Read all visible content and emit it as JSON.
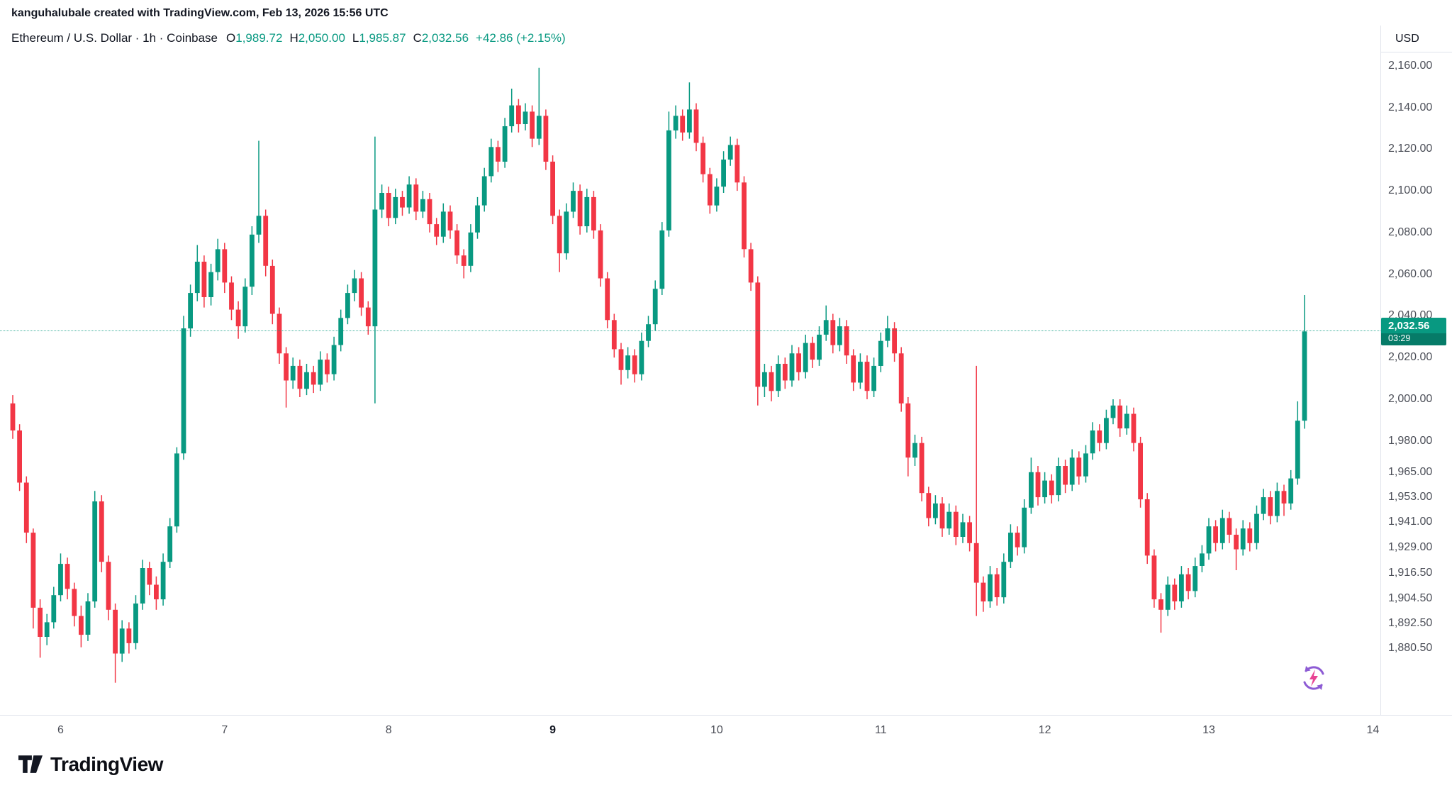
{
  "attribution": "kanguhalubale created with TradingView.com, Feb 13, 2026 15:56 UTC",
  "symbol_bar": {
    "title": "Ethereum / U.S. Dollar · 1h · Coinbase",
    "ohlc": {
      "o_label": "O",
      "o": "1,989.72",
      "h_label": "H",
      "h": "2,050.00",
      "l_label": "L",
      "l": "1,985.87",
      "c_label": "C",
      "c": "2,032.56",
      "change": "+42.86 (+2.15%)"
    }
  },
  "price_axis": {
    "unit": "USD",
    "last_price": "2,032.56",
    "countdown": "03:29",
    "labels": [
      {
        "v": 2160,
        "t": "2,160.00"
      },
      {
        "v": 2140,
        "t": "2,140.00"
      },
      {
        "v": 2120,
        "t": "2,120.00"
      },
      {
        "v": 2100,
        "t": "2,100.00"
      },
      {
        "v": 2080,
        "t": "2,080.00"
      },
      {
        "v": 2060,
        "t": "2,060.00"
      },
      {
        "v": 2040,
        "t": "2,040.00"
      },
      {
        "v": 2020,
        "t": "2,020.00"
      },
      {
        "v": 2000,
        "t": "2,000.00"
      },
      {
        "v": 1980,
        "t": "1,980.00"
      },
      {
        "v": 1965,
        "t": "1,965.00"
      },
      {
        "v": 1953,
        "t": "1,953.00"
      },
      {
        "v": 1941,
        "t": "1,941.00"
      },
      {
        "v": 1929,
        "t": "1,929.00"
      },
      {
        "v": 1916.5,
        "t": "1,916.50"
      },
      {
        "v": 1904.5,
        "t": "1,904.50"
      },
      {
        "v": 1892.5,
        "t": "1,892.50"
      },
      {
        "v": 1880.5,
        "t": "1,880.50"
      }
    ]
  },
  "time_axis": {
    "labels": [
      {
        "d": 6,
        "t": "6",
        "bold": false
      },
      {
        "d": 7,
        "t": "7",
        "bold": false
      },
      {
        "d": 8,
        "t": "8",
        "bold": false
      },
      {
        "d": 9,
        "t": "9",
        "bold": true
      },
      {
        "d": 10,
        "t": "10",
        "bold": false
      },
      {
        "d": 11,
        "t": "11",
        "bold": false
      },
      {
        "d": 12,
        "t": "12",
        "bold": false
      },
      {
        "d": 13,
        "t": "13",
        "bold": false
      },
      {
        "d": 14,
        "t": "14",
        "bold": false
      }
    ]
  },
  "logo": {
    "text": "TradingView"
  },
  "colors": {
    "up": "#089981",
    "down": "#f23645",
    "text": "#131722",
    "axis_text": "#4c4f58",
    "border": "#e0e3eb",
    "spark_purple": "#8d5bd4",
    "spark_pink": "#e84393"
  },
  "chart_data": {
    "type": "candlestick",
    "title": "Ethereum / U.S. Dollar",
    "interval": "1h",
    "exchange": "Coinbase",
    "ylabel": "USD",
    "grid": false,
    "visible_price_range": [
      1848,
      2160
    ],
    "x_axis_days": [
      6,
      7,
      8,
      9,
      10,
      11,
      12,
      13,
      14
    ],
    "bold_day": 9,
    "last": {
      "open": 1989.72,
      "high": 2050.0,
      "low": 1985.87,
      "close": 2032.56,
      "change_abs": 42.86,
      "change_pct": 2.15
    },
    "candles": [
      [
        1998,
        2002,
        1981,
        1985
      ],
      [
        1985,
        1988,
        1956,
        1960
      ],
      [
        1960,
        1963,
        1931,
        1936
      ],
      [
        1936,
        1938,
        1890,
        1900
      ],
      [
        1900,
        1904,
        1876,
        1886
      ],
      [
        1886,
        1897,
        1882,
        1893
      ],
      [
        1893,
        1910,
        1890,
        1906
      ],
      [
        1906,
        1926,
        1903,
        1921
      ],
      [
        1921,
        1924,
        1904,
        1909
      ],
      [
        1909,
        1912,
        1891,
        1896
      ],
      [
        1896,
        1901,
        1881,
        1887
      ],
      [
        1887,
        1907,
        1884,
        1903
      ],
      [
        1903,
        1956,
        1900,
        1951
      ],
      [
        1951,
        1954,
        1917,
        1922
      ],
      [
        1922,
        1925,
        1894,
        1899
      ],
      [
        1899,
        1902,
        1864,
        1878
      ],
      [
        1878,
        1894,
        1874,
        1890
      ],
      [
        1890,
        1893,
        1878,
        1883
      ],
      [
        1883,
        1906,
        1880,
        1902
      ],
      [
        1902,
        1923,
        1899,
        1919
      ],
      [
        1919,
        1922,
        1906,
        1911
      ],
      [
        1911,
        1915,
        1899,
        1904
      ],
      [
        1904,
        1926,
        1901,
        1922
      ],
      [
        1922,
        1943,
        1919,
        1939
      ],
      [
        1939,
        1977,
        1936,
        1974
      ],
      [
        1974,
        2040,
        1971,
        2034
      ],
      [
        2034,
        2055,
        2030,
        2051
      ],
      [
        2051,
        2074,
        2047,
        2066
      ],
      [
        2066,
        2069,
        2044,
        2049
      ],
      [
        2049,
        2065,
        2045,
        2061
      ],
      [
        2061,
        2077,
        2057,
        2072
      ],
      [
        2072,
        2075,
        2051,
        2056
      ],
      [
        2056,
        2059,
        2038,
        2043
      ],
      [
        2043,
        2047,
        2029,
        2035
      ],
      [
        2035,
        2058,
        2032,
        2054
      ],
      [
        2054,
        2083,
        2050,
        2079
      ],
      [
        2079,
        2124,
        2075,
        2088
      ],
      [
        2088,
        2091,
        2059,
        2064
      ],
      [
        2064,
        2067,
        2036,
        2041
      ],
      [
        2041,
        2044,
        2017,
        2022
      ],
      [
        2022,
        2025,
        1996,
        2009
      ],
      [
        2009,
        2020,
        2005,
        2016
      ],
      [
        2016,
        2019,
        2001,
        2005
      ],
      [
        2005,
        2017,
        2002,
        2013
      ],
      [
        2013,
        2016,
        2003,
        2007
      ],
      [
        2007,
        2023,
        2004,
        2019
      ],
      [
        2019,
        2022,
        2008,
        2012
      ],
      [
        2012,
        2030,
        2009,
        2026
      ],
      [
        2026,
        2043,
        2023,
        2039
      ],
      [
        2039,
        2055,
        2036,
        2051
      ],
      [
        2051,
        2062,
        2047,
        2058
      ],
      [
        2058,
        2061,
        2040,
        2044
      ],
      [
        2044,
        2047,
        2031,
        2035
      ],
      [
        2035,
        2126,
        1998,
        2091
      ],
      [
        2091,
        2103,
        2087,
        2099
      ],
      [
        2099,
        2102,
        2083,
        2087
      ],
      [
        2087,
        2101,
        2084,
        2097
      ],
      [
        2097,
        2100,
        2088,
        2092
      ],
      [
        2092,
        2107,
        2089,
        2103
      ],
      [
        2103,
        2106,
        2086,
        2090
      ],
      [
        2090,
        2100,
        2087,
        2096
      ],
      [
        2096,
        2099,
        2080,
        2084
      ],
      [
        2084,
        2087,
        2074,
        2078
      ],
      [
        2078,
        2094,
        2075,
        2090
      ],
      [
        2090,
        2093,
        2077,
        2081
      ],
      [
        2081,
        2084,
        2065,
        2069
      ],
      [
        2069,
        2072,
        2058,
        2064
      ],
      [
        2064,
        2084,
        2061,
        2080
      ],
      [
        2080,
        2097,
        2077,
        2093
      ],
      [
        2093,
        2111,
        2090,
        2107
      ],
      [
        2107,
        2125,
        2104,
        2121
      ],
      [
        2121,
        2124,
        2109,
        2114
      ],
      [
        2114,
        2135,
        2111,
        2131
      ],
      [
        2131,
        2149,
        2128,
        2141
      ],
      [
        2141,
        2144,
        2128,
        2132
      ],
      [
        2132,
        2142,
        2129,
        2138
      ],
      [
        2138,
        2141,
        2121,
        2125
      ],
      [
        2125,
        2159,
        2122,
        2136
      ],
      [
        2136,
        2139,
        2110,
        2114
      ],
      [
        2114,
        2117,
        2084,
        2088
      ],
      [
        2088,
        2091,
        2061,
        2070
      ],
      [
        2070,
        2094,
        2067,
        2090
      ],
      [
        2090,
        2104,
        2087,
        2100
      ],
      [
        2100,
        2103,
        2079,
        2083
      ],
      [
        2083,
        2101,
        2080,
        2097
      ],
      [
        2097,
        2100,
        2077,
        2081
      ],
      [
        2081,
        2084,
        2054,
        2058
      ],
      [
        2058,
        2061,
        2034,
        2038
      ],
      [
        2038,
        2041,
        2020,
        2024
      ],
      [
        2024,
        2027,
        2007,
        2014
      ],
      [
        2014,
        2025,
        2010,
        2021
      ],
      [
        2021,
        2024,
        2008,
        2012
      ],
      [
        2012,
        2032,
        2009,
        2028
      ],
      [
        2028,
        2040,
        2025,
        2036
      ],
      [
        2036,
        2057,
        2033,
        2053
      ],
      [
        2053,
        2085,
        2050,
        2081
      ],
      [
        2081,
        2138,
        2078,
        2129
      ],
      [
        2129,
        2141,
        2125,
        2136
      ],
      [
        2136,
        2139,
        2124,
        2128
      ],
      [
        2128,
        2152,
        2125,
        2139
      ],
      [
        2139,
        2142,
        2119,
        2123
      ],
      [
        2123,
        2126,
        2104,
        2108
      ],
      [
        2108,
        2111,
        2089,
        2093
      ],
      [
        2093,
        2106,
        2090,
        2102
      ],
      [
        2102,
        2119,
        2099,
        2115
      ],
      [
        2115,
        2126,
        2112,
        2122
      ],
      [
        2122,
        2125,
        2100,
        2104
      ],
      [
        2104,
        2107,
        2068,
        2072
      ],
      [
        2072,
        2075,
        2052,
        2056
      ],
      [
        2056,
        2059,
        1997,
        2006
      ],
      [
        2006,
        2017,
        2001,
        2013
      ],
      [
        2013,
        2016,
        1999,
        2004
      ],
      [
        2004,
        2021,
        2001,
        2017
      ],
      [
        2017,
        2020,
        2005,
        2009
      ],
      [
        2009,
        2026,
        2006,
        2022
      ],
      [
        2022,
        2025,
        2009,
        2013
      ],
      [
        2013,
        2031,
        2010,
        2027
      ],
      [
        2027,
        2030,
        2015,
        2019
      ],
      [
        2019,
        2035,
        2016,
        2031
      ],
      [
        2031,
        2045,
        2028,
        2038
      ],
      [
        2038,
        2041,
        2022,
        2026
      ],
      [
        2026,
        2039,
        2023,
        2035
      ],
      [
        2035,
        2038,
        2017,
        2021
      ],
      [
        2021,
        2024,
        2004,
        2008
      ],
      [
        2008,
        2022,
        2005,
        2018
      ],
      [
        2018,
        2021,
        2000,
        2004
      ],
      [
        2004,
        2020,
        2001,
        2016
      ],
      [
        2016,
        2032,
        2013,
        2028
      ],
      [
        2028,
        2040,
        2025,
        2034
      ],
      [
        2034,
        2037,
        2018,
        2022
      ],
      [
        2022,
        2025,
        1994,
        1998
      ],
      [
        1998,
        2001,
        1963,
        1972
      ],
      [
        1972,
        1983,
        1968,
        1979
      ],
      [
        1979,
        1982,
        1951,
        1955
      ],
      [
        1955,
        1958,
        1939,
        1943
      ],
      [
        1943,
        1954,
        1940,
        1950
      ],
      [
        1950,
        1953,
        1934,
        1938
      ],
      [
        1938,
        1950,
        1935,
        1946
      ],
      [
        1946,
        1949,
        1930,
        1934
      ],
      [
        1934,
        1945,
        1931,
        1941
      ],
      [
        1941,
        1944,
        1927,
        1931
      ],
      [
        1931,
        2016,
        1896,
        1912
      ],
      [
        1912,
        1915,
        1898,
        1903
      ],
      [
        1903,
        1920,
        1900,
        1916
      ],
      [
        1916,
        1919,
        1901,
        1905
      ],
      [
        1905,
        1926,
        1902,
        1922
      ],
      [
        1922,
        1940,
        1919,
        1936
      ],
      [
        1936,
        1939,
        1925,
        1929
      ],
      [
        1929,
        1952,
        1926,
        1948
      ],
      [
        1948,
        1972,
        1945,
        1965
      ],
      [
        1965,
        1968,
        1949,
        1953
      ],
      [
        1953,
        1965,
        1950,
        1961
      ],
      [
        1961,
        1964,
        1950,
        1954
      ],
      [
        1954,
        1972,
        1951,
        1968
      ],
      [
        1968,
        1971,
        1955,
        1959
      ],
      [
        1959,
        1976,
        1956,
        1972
      ],
      [
        1972,
        1975,
        1959,
        1963
      ],
      [
        1963,
        1978,
        1960,
        1974
      ],
      [
        1974,
        1989,
        1971,
        1985
      ],
      [
        1985,
        1988,
        1975,
        1979
      ],
      [
        1979,
        1995,
        1976,
        1991
      ],
      [
        1991,
        2000,
        1988,
        1997
      ],
      [
        1997,
        2000,
        1982,
        1986
      ],
      [
        1986,
        1997,
        1983,
        1993
      ],
      [
        1993,
        1996,
        1975,
        1979
      ],
      [
        1979,
        1982,
        1948,
        1952
      ],
      [
        1952,
        1955,
        1921,
        1925
      ],
      [
        1925,
        1928,
        1900,
        1904
      ],
      [
        1904,
        1907,
        1888,
        1899
      ],
      [
        1899,
        1915,
        1896,
        1911
      ],
      [
        1911,
        1914,
        1899,
        1903
      ],
      [
        1903,
        1920,
        1900,
        1916
      ],
      [
        1916,
        1919,
        1904,
        1908
      ],
      [
        1908,
        1924,
        1905,
        1920
      ],
      [
        1920,
        1930,
        1917,
        1926
      ],
      [
        1926,
        1943,
        1923,
        1939
      ],
      [
        1939,
        1942,
        1927,
        1931
      ],
      [
        1931,
        1947,
        1928,
        1943
      ],
      [
        1943,
        1946,
        1931,
        1935
      ],
      [
        1935,
        1938,
        1918,
        1928
      ],
      [
        1928,
        1942,
        1925,
        1938
      ],
      [
        1938,
        1941,
        1927,
        1931
      ],
      [
        1931,
        1949,
        1928,
        1945
      ],
      [
        1945,
        1957,
        1942,
        1953
      ],
      [
        1953,
        1956,
        1940,
        1944
      ],
      [
        1944,
        1960,
        1941,
        1956
      ],
      [
        1956,
        1959,
        1944,
        1950
      ],
      [
        1950,
        1966,
        1947,
        1962
      ],
      [
        1962,
        1999,
        1959,
        1989.72
      ],
      [
        1989.72,
        2050,
        1985.87,
        2032.56
      ]
    ]
  }
}
